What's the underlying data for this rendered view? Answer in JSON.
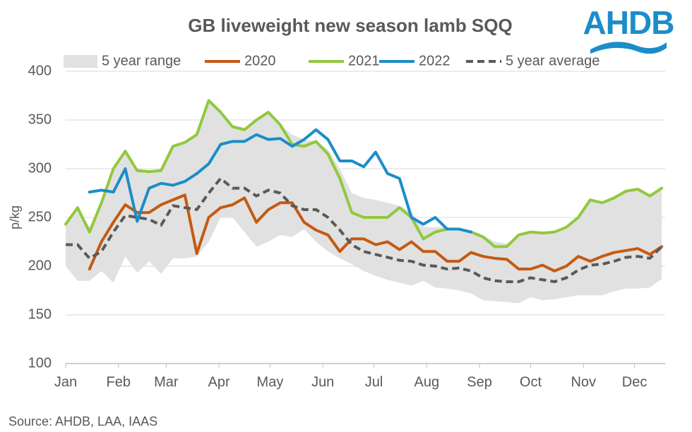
{
  "chart_data": {
    "type": "line",
    "title": "GB liveweight new season lamb SQQ",
    "logo": "AHDB",
    "source": "Source: AHDB, LAA, IAAS",
    "y_label": "p/kg",
    "x": [
      0,
      7,
      14,
      21,
      28,
      35,
      42,
      49,
      56,
      63,
      70,
      77,
      84,
      91,
      98,
      105,
      112,
      119,
      126,
      133,
      140,
      147,
      154,
      161,
      168,
      175,
      182,
      189,
      196,
      203,
      210,
      217,
      224,
      231,
      238,
      245,
      252,
      259,
      266,
      273,
      280,
      287,
      294,
      301,
      308,
      315,
      322,
      329,
      336,
      343,
      350
    ],
    "xlim": [
      0,
      352
    ],
    "xticks": [
      {
        "value": 0,
        "label": "Jan"
      },
      {
        "value": 31,
        "label": "Feb"
      },
      {
        "value": 59,
        "label": "Mar"
      },
      {
        "value": 90,
        "label": "Apr"
      },
      {
        "value": 120,
        "label": "May"
      },
      {
        "value": 151,
        "label": "Jun"
      },
      {
        "value": 181,
        "label": "Jul"
      },
      {
        "value": 212,
        "label": "Aug"
      },
      {
        "value": 243,
        "label": "Sep"
      },
      {
        "value": 273,
        "label": "Oct"
      },
      {
        "value": 304,
        "label": "Nov"
      },
      {
        "value": 334,
        "label": "Dec"
      }
    ],
    "ylim": [
      100,
      400
    ],
    "yticks": [
      100,
      150,
      200,
      250,
      300,
      350,
      400
    ],
    "grid": true,
    "legend": "top",
    "range": {
      "name": "5 year range",
      "color": "#e1e1e1",
      "high": [
        243,
        260,
        240,
        265,
        300,
        318,
        300,
        298,
        300,
        323,
        327,
        335,
        370,
        358,
        345,
        342,
        352,
        358,
        345,
        335,
        330,
        328,
        320,
        300,
        275,
        270,
        268,
        265,
        262,
        255,
        240,
        240,
        240,
        238,
        237,
        232,
        225,
        223,
        232,
        235,
        234,
        236,
        240,
        250,
        268,
        265,
        270,
        277,
        279,
        274,
        280
      ],
      "low": [
        200,
        185,
        185,
        195,
        183,
        210,
        193,
        205,
        192,
        208,
        208,
        210,
        225,
        250,
        250,
        235,
        220,
        225,
        232,
        230,
        238,
        225,
        215,
        208,
        202,
        195,
        190,
        186,
        183,
        180,
        185,
        178,
        177,
        175,
        172,
        165,
        164,
        163,
        162,
        168,
        165,
        166,
        168,
        170,
        170,
        170,
        174,
        177,
        177,
        178,
        187
      ]
    },
    "series": [
      {
        "name": "2020",
        "color": "#c55a11",
        "dashed": false,
        "values": [
          null,
          null,
          197,
          225,
          245,
          263,
          255,
          255,
          263,
          268,
          273,
          213,
          250,
          260,
          263,
          270,
          245,
          258,
          265,
          265,
          245,
          237,
          232,
          215,
          228,
          228,
          222,
          225,
          217,
          225,
          215,
          215,
          205,
          205,
          214,
          210,
          208,
          207,
          197,
          197,
          201,
          195,
          200,
          210,
          205,
          210,
          214,
          216,
          218,
          212,
          220
        ]
      },
      {
        "name": "2021",
        "color": "#92c83e",
        "dashed": false,
        "values": [
          243,
          260,
          235,
          265,
          300,
          318,
          298,
          297,
          298,
          323,
          327,
          335,
          370,
          358,
          343,
          340,
          350,
          358,
          345,
          325,
          323,
          328,
          315,
          290,
          255,
          250,
          250,
          250,
          260,
          250,
          228,
          235,
          238,
          238,
          235,
          230,
          220,
          220,
          232,
          235,
          234,
          235,
          240,
          250,
          268,
          265,
          270,
          277,
          279,
          272,
          280
        ]
      },
      {
        "name": "2022",
        "color": "#1b8dc9",
        "dashed": false,
        "values": [
          null,
          null,
          276,
          278,
          276,
          300,
          246,
          280,
          285,
          283,
          287,
          295,
          305,
          325,
          328,
          328,
          335,
          330,
          331,
          323,
          330,
          340,
          330,
          308,
          308,
          302,
          317,
          295,
          290,
          250,
          243,
          250,
          238,
          238,
          235,
          null,
          null,
          null,
          null,
          null,
          null,
          null,
          null,
          null,
          null,
          null,
          null,
          null,
          null,
          null,
          null
        ]
      },
      {
        "name": "5 year average",
        "color": "#595959",
        "dashed": true,
        "values": [
          222,
          222,
          208,
          215,
          235,
          252,
          250,
          248,
          242,
          262,
          260,
          258,
          275,
          290,
          280,
          280,
          272,
          278,
          275,
          262,
          258,
          258,
          250,
          237,
          222,
          215,
          212,
          209,
          206,
          205,
          201,
          200,
          197,
          198,
          195,
          188,
          185,
          184,
          184,
          188,
          186,
          184,
          188,
          196,
          201,
          202,
          205,
          209,
          210,
          208,
          220
        ]
      }
    ]
  }
}
